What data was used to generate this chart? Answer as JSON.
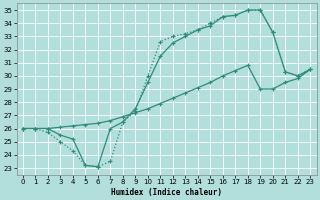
{
  "xlabel": "Humidex (Indice chaleur)",
  "bg_color": "#b2dfdb",
  "grid_color": "#d0eeeb",
  "line_color": "#2e8b7a",
  "xlim": [
    -0.5,
    23.5
  ],
  "ylim": [
    22.5,
    35.5
  ],
  "yticks": [
    23,
    24,
    25,
    26,
    27,
    28,
    29,
    30,
    31,
    32,
    33,
    34,
    35
  ],
  "xticks": [
    0,
    1,
    2,
    3,
    4,
    5,
    6,
    7,
    8,
    9,
    10,
    11,
    12,
    13,
    14,
    15,
    16,
    17,
    18,
    19,
    20,
    21,
    22,
    23
  ],
  "line1_x": [
    0,
    1,
    2,
    3,
    4,
    5,
    6,
    7,
    8,
    9,
    10,
    11,
    12,
    13,
    14,
    15,
    16,
    17,
    18,
    19,
    20,
    21,
    22,
    23
  ],
  "line1_y": [
    26.0,
    26.0,
    25.7,
    25.0,
    24.3,
    23.2,
    23.1,
    23.5,
    26.5,
    27.3,
    30.0,
    32.6,
    33.0,
    33.2,
    33.5,
    34.0,
    34.5,
    34.6,
    35.0,
    35.0,
    33.3,
    30.3,
    30.0,
    30.5
  ],
  "line2_x": [
    0,
    1,
    2,
    3,
    4,
    5,
    6,
    7,
    8,
    9,
    10,
    11,
    12,
    13,
    14,
    15,
    16,
    17,
    18,
    19,
    20,
    21,
    22,
    23
  ],
  "line2_y": [
    26.0,
    26.0,
    26.0,
    25.5,
    25.2,
    23.2,
    23.1,
    26.0,
    26.5,
    27.5,
    29.5,
    31.5,
    32.5,
    33.0,
    33.5,
    33.8,
    34.5,
    34.6,
    35.0,
    35.0,
    33.3,
    30.3,
    30.0,
    30.5
  ],
  "line3_x": [
    0,
    1,
    2,
    3,
    4,
    5,
    6,
    7,
    8,
    9,
    10,
    11,
    12,
    13,
    14,
    15,
    16,
    17,
    18,
    19,
    20,
    21,
    22,
    23
  ],
  "line3_y": [
    26.0,
    26.0,
    26.0,
    26.1,
    26.2,
    26.3,
    26.4,
    26.6,
    26.9,
    27.2,
    27.5,
    27.9,
    28.3,
    28.7,
    29.1,
    29.5,
    30.0,
    30.4,
    30.8,
    29.0,
    29.0,
    29.5,
    29.8,
    30.5
  ],
  "line1_style": "dotted",
  "line2_style": "solid",
  "line3_style": "solid"
}
